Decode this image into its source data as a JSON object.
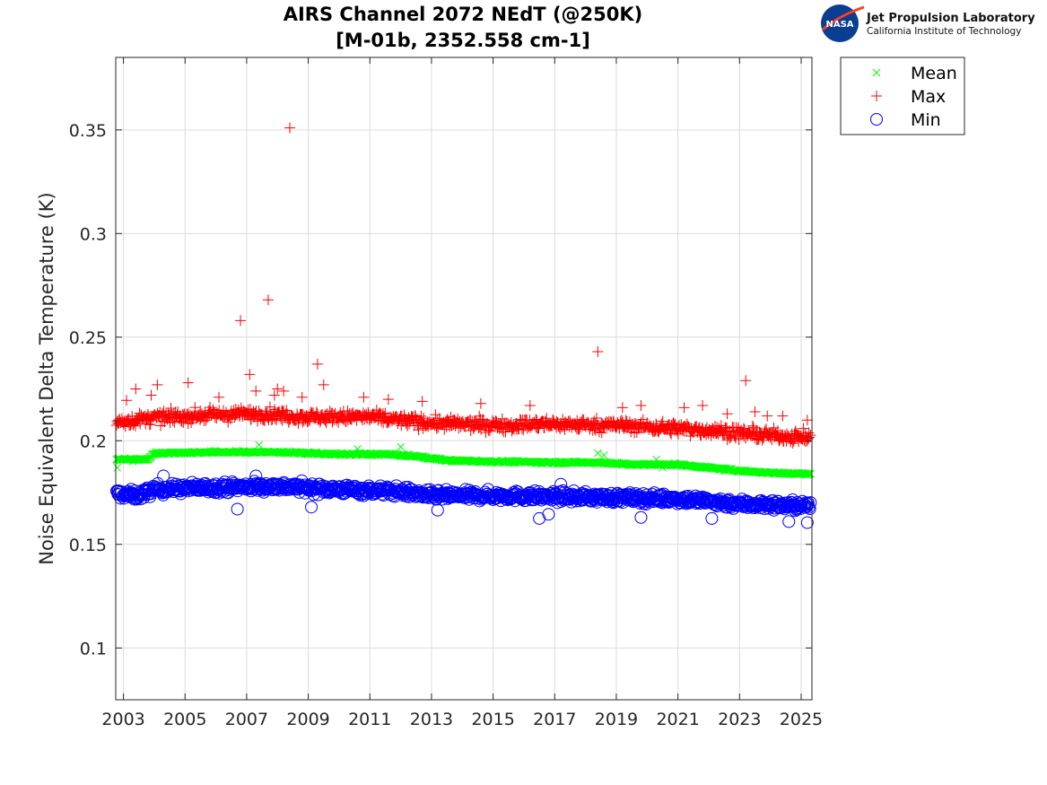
{
  "logo": {
    "badge_text": "NASA",
    "line1": "Jet Propulsion Laboratory",
    "line2": "California Institute of Technology"
  },
  "colors": {
    "mean": "#00ff00",
    "max": "#ff0000",
    "min": "#0000ff",
    "axis": "#262626",
    "grid": "#dcdcdc"
  },
  "chart_data": {
    "type": "scatter",
    "title": "AIRS Channel 2072 NEdT (@250K)",
    "subtitle": "[M-01b, 2352.558 cm-1]",
    "xlabel": "",
    "ylabel": "Noise Equivalent Delta Temperature (K)",
    "x_units": "year",
    "xlim": [
      2002.75,
      2025.35
    ],
    "ylim": [
      0.075,
      0.385
    ],
    "x_ticks": [
      2003,
      2005,
      2007,
      2009,
      2011,
      2013,
      2015,
      2017,
      2019,
      2021,
      2023,
      2025
    ],
    "x_tick_labels": [
      "2003",
      "2005",
      "2007",
      "2009",
      "2011",
      "2013",
      "2015",
      "2017",
      "2019",
      "2021",
      "2023",
      "2025"
    ],
    "y_ticks": [
      0.1,
      0.15,
      0.2,
      0.25,
      0.3,
      0.35
    ],
    "y_tick_labels": [
      "0.1",
      "0.15",
      "0.2",
      "0.25",
      "0.3",
      "0.35"
    ],
    "grid": true,
    "legend_position": "outside top-right",
    "series": [
      {
        "name": "Mean",
        "marker": "x",
        "color": "#00ff00",
        "trend_x": [
          2002.75,
          2003.0,
          2003.8,
          2004.0,
          2006.0,
          2008.0,
          2010.0,
          2011.5,
          2012.5,
          2013.5,
          2015.0,
          2017.0,
          2018.5,
          2019.5,
          2021.0,
          2022.0,
          2023.0,
          2024.0,
          2025.3
        ],
        "trend_y": [
          0.191,
          0.191,
          0.191,
          0.194,
          0.1945,
          0.1945,
          0.1935,
          0.1935,
          0.1925,
          0.1905,
          0.19,
          0.1895,
          0.1895,
          0.1885,
          0.1885,
          0.187,
          0.1855,
          0.1845,
          0.184
        ],
        "spread": 0.0006,
        "outliers": [
          [
            2002.8,
            0.187
          ],
          [
            2003.3,
            0.19
          ],
          [
            2007.4,
            0.198
          ],
          [
            2010.6,
            0.196
          ],
          [
            2012.0,
            0.197
          ],
          [
            2018.4,
            0.194
          ],
          [
            2018.6,
            0.193
          ],
          [
            2020.3,
            0.191
          ],
          [
            2020.5,
            0.187
          ]
        ]
      },
      {
        "name": "Max",
        "marker": "+",
        "color": "#ff0000",
        "trend_x": [
          2002.75,
          2004.0,
          2006.0,
          2007.5,
          2009.0,
          2011.0,
          2013.0,
          2015.0,
          2017.0,
          2019.0,
          2021.0,
          2022.5,
          2023.5,
          2025.3
        ],
        "trend_y": [
          0.209,
          0.211,
          0.2125,
          0.213,
          0.2115,
          0.2115,
          0.2085,
          0.2075,
          0.208,
          0.2075,
          0.206,
          0.2045,
          0.203,
          0.2015
        ],
        "spread": 0.003,
        "outliers": [
          [
            2003.1,
            0.2195
          ],
          [
            2003.4,
            0.225
          ],
          [
            2003.9,
            0.222
          ],
          [
            2004.1,
            0.227
          ],
          [
            2005.1,
            0.228
          ],
          [
            2006.1,
            0.221
          ],
          [
            2006.8,
            0.258
          ],
          [
            2007.1,
            0.232
          ],
          [
            2007.3,
            0.224
          ],
          [
            2007.7,
            0.268
          ],
          [
            2007.9,
            0.222
          ],
          [
            2008.0,
            0.225
          ],
          [
            2008.2,
            0.224
          ],
          [
            2008.4,
            0.351
          ],
          [
            2008.8,
            0.221
          ],
          [
            2009.3,
            0.237
          ],
          [
            2009.5,
            0.227
          ],
          [
            2010.8,
            0.221
          ],
          [
            2011.6,
            0.22
          ],
          [
            2012.7,
            0.219
          ],
          [
            2014.6,
            0.218
          ],
          [
            2016.2,
            0.217
          ],
          [
            2018.4,
            0.243
          ],
          [
            2019.2,
            0.216
          ],
          [
            2019.8,
            0.217
          ],
          [
            2021.2,
            0.216
          ],
          [
            2021.8,
            0.217
          ],
          [
            2022.6,
            0.213
          ],
          [
            2023.2,
            0.229
          ],
          [
            2023.5,
            0.214
          ],
          [
            2023.9,
            0.212
          ],
          [
            2024.4,
            0.212
          ],
          [
            2025.2,
            0.21
          ]
        ]
      },
      {
        "name": "Min",
        "marker": "o",
        "color": "#0000ff",
        "trend_x": [
          2002.75,
          2003.5,
          2004.0,
          2006.0,
          2008.0,
          2010.0,
          2012.0,
          2013.0,
          2015.0,
          2017.0,
          2019.0,
          2021.0,
          2023.0,
          2025.3
        ],
        "trend_y": [
          0.1745,
          0.1735,
          0.1765,
          0.1775,
          0.178,
          0.1765,
          0.1755,
          0.1735,
          0.1735,
          0.173,
          0.1725,
          0.172,
          0.1695,
          0.1685
        ],
        "spread": 0.0025,
        "outliers": [
          [
            2006.7,
            0.167
          ],
          [
            2009.1,
            0.168
          ],
          [
            2016.5,
            0.1625
          ],
          [
            2016.8,
            0.1645
          ],
          [
            2019.8,
            0.163
          ],
          [
            2022.1,
            0.1625
          ],
          [
            2024.6,
            0.161
          ],
          [
            2025.2,
            0.1605
          ],
          [
            2004.3,
            0.183
          ],
          [
            2007.3,
            0.183
          ],
          [
            2013.2,
            0.1665
          ],
          [
            2017.2,
            0.179
          ]
        ]
      }
    ]
  }
}
